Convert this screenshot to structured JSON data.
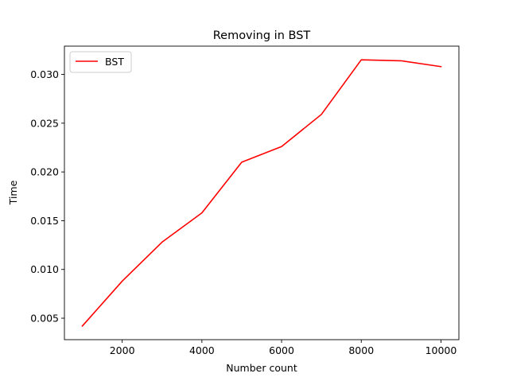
{
  "chart_data": {
    "type": "line",
    "title": "Removing in BST",
    "xlabel": "Number count",
    "ylabel": "Time",
    "xlim": [
      550,
      10450
    ],
    "ylim": [
      0.0028,
      0.0329
    ],
    "xticks": [
      2000,
      4000,
      6000,
      8000,
      10000
    ],
    "xtick_labels": [
      "2000",
      "4000",
      "6000",
      "8000",
      "10000"
    ],
    "yticks": [
      0.005,
      0.01,
      0.015,
      0.02,
      0.025,
      0.03
    ],
    "ytick_labels": [
      "0.005",
      "0.010",
      "0.015",
      "0.020",
      "0.025",
      "0.030"
    ],
    "grid": false,
    "legend_position": "upper-left",
    "x": [
      1000,
      2000,
      3000,
      4000,
      5000,
      6000,
      7000,
      8000,
      9000,
      10000
    ],
    "series": [
      {
        "name": "BST",
        "color": "#ff0000",
        "values": [
          0.0042,
          0.0088,
          0.0128,
          0.0158,
          0.021,
          0.0226,
          0.0259,
          0.0315,
          0.0314,
          0.0308
        ]
      }
    ]
  }
}
